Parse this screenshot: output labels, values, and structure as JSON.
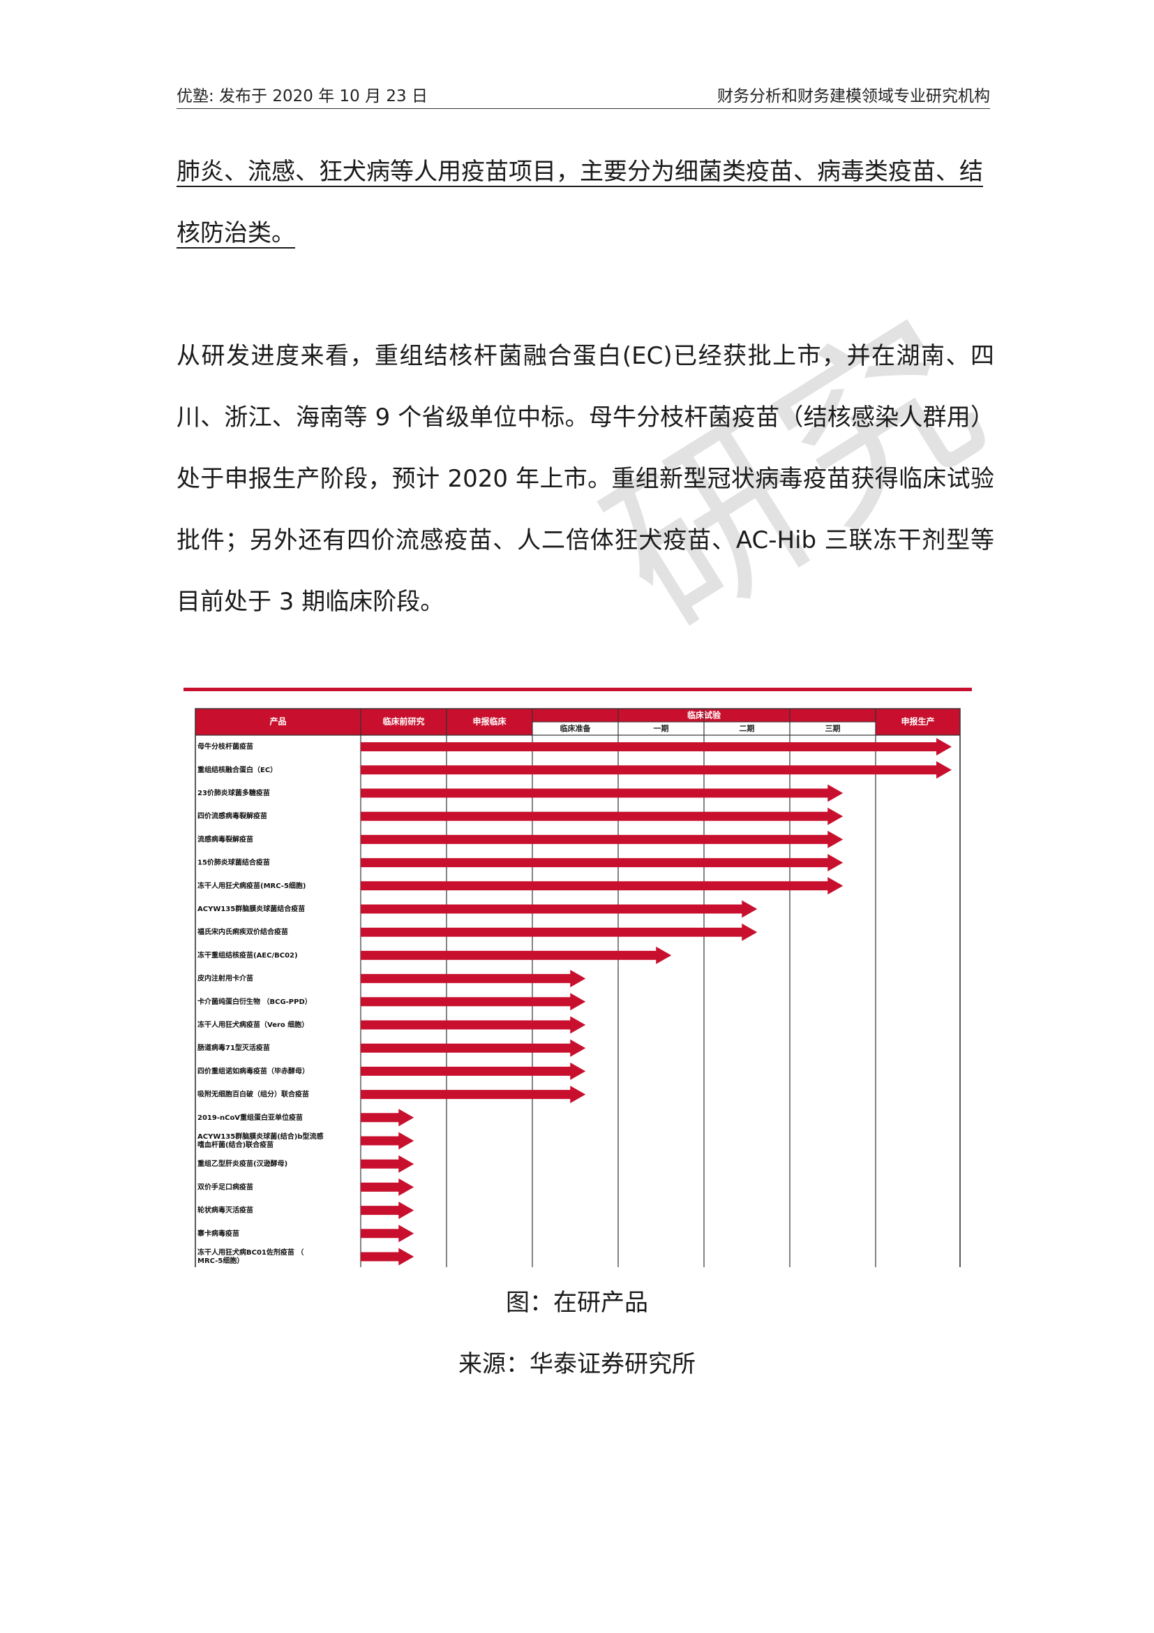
{
  "header": {
    "left": "优塾: 发布于 2020 年 10 月 23 日",
    "right": "财务分析和财务建模领域专业研究机构"
  },
  "paragraph1": {
    "underlined": "肺炎、流感、狂犬病等人用疫苗项目，主要分为细菌类疫苗、病毒类疫苗、结核防治类。"
  },
  "paragraph2": {
    "text": "从研发进度来看，重组结核杆菌融合蛋白(EC)已经获批上市，并在湖南、四川、浙江、海南等 9 个省级单位中标。母牛分枝杆菌疫苗（结核感染人群用）处于申报生产阶段，预计 2020 年上市。重组新型冠状病毒疫苗获得临床试验批件；另外还有四价流感疫苗、人二倍体狂犬疫苗、AC-Hib 三联冻干剂型等目前处于 3 期临床阶段。"
  },
  "watermark": "研究",
  "figure": {
    "caption": "图：在研产品",
    "source": "来源：华泰证券研究所"
  },
  "colors": {
    "accent": "#c8102e",
    "header_fill": "#c8102e",
    "header_text": "#ffffff",
    "grid": "#333333"
  },
  "chart_data": {
    "type": "table",
    "columns": {
      "product": "产品",
      "preclinical": "临床前研究",
      "apply_clinical": "申报临床",
      "clinical_trial": "临床试验",
      "clinical_sub": [
        "临床准备",
        "一期",
        "二期",
        "三期"
      ],
      "apply_production": "申报生产"
    },
    "stage_order": [
      "临床前研究",
      "申报临床",
      "临床准备",
      "一期",
      "二期",
      "三期",
      "申报生产"
    ],
    "rows": [
      {
        "name": "母牛分枝杆菌疫苗",
        "stage_index": 7
      },
      {
        "name": "重组结核融合蛋白（EC）",
        "stage_index": 7
      },
      {
        "name": "23价肺炎球菌多糖疫苗",
        "stage_index": 6
      },
      {
        "name": "四价流感病毒裂解疫苗",
        "stage_index": 6
      },
      {
        "name": "流感病毒裂解疫苗",
        "stage_index": 6
      },
      {
        "name": "15价肺炎球菌结合疫苗",
        "stage_index": 6
      },
      {
        "name": "冻干人用狂犬病疫苗(MRC-5细胞)",
        "stage_index": 6
      },
      {
        "name": "ACYW135群脑膜炎球菌结合疫苗",
        "stage_index": 5
      },
      {
        "name": "福氏宋内氏痢疾双价结合疫苗",
        "stage_index": 5
      },
      {
        "name": "冻干重组结核疫苗(AEC/BC02)",
        "stage_index": 4
      },
      {
        "name": "皮内注射用卡介苗",
        "stage_index": 3
      },
      {
        "name": "卡介菌纯蛋白衍生物 （BCG-PPD）",
        "stage_index": 3
      },
      {
        "name": "冻干人用狂犬病疫苗（Vero 细胞）",
        "stage_index": 3
      },
      {
        "name": "肠道病毒71型灭活疫苗",
        "stage_index": 3
      },
      {
        "name": "四价重组诺如病毒疫苗（毕赤酵母）",
        "stage_index": 3
      },
      {
        "name": "吸附无细胞百白破（组分）联合疫苗",
        "stage_index": 3
      },
      {
        "name": "2019-nCoV重组蛋白亚单位疫苗",
        "stage_index": 1
      },
      {
        "name": "ACYW135群脑膜炎球菌(结合)b型流感嗜血杆菌(结合)联合疫苗",
        "stage_index": 1
      },
      {
        "name": "重组乙型肝炎疫苗(汉逊酵母)",
        "stage_index": 1
      },
      {
        "name": "双价手足口病疫苗",
        "stage_index": 1
      },
      {
        "name": "轮状病毒灭活疫苗",
        "stage_index": 1
      },
      {
        "name": "寨卡病毒疫苗",
        "stage_index": 1
      },
      {
        "name": "冻干人用狂犬病BC01佐剂疫苗 （MRC-5细胞）",
        "stage_index": 1
      }
    ]
  }
}
